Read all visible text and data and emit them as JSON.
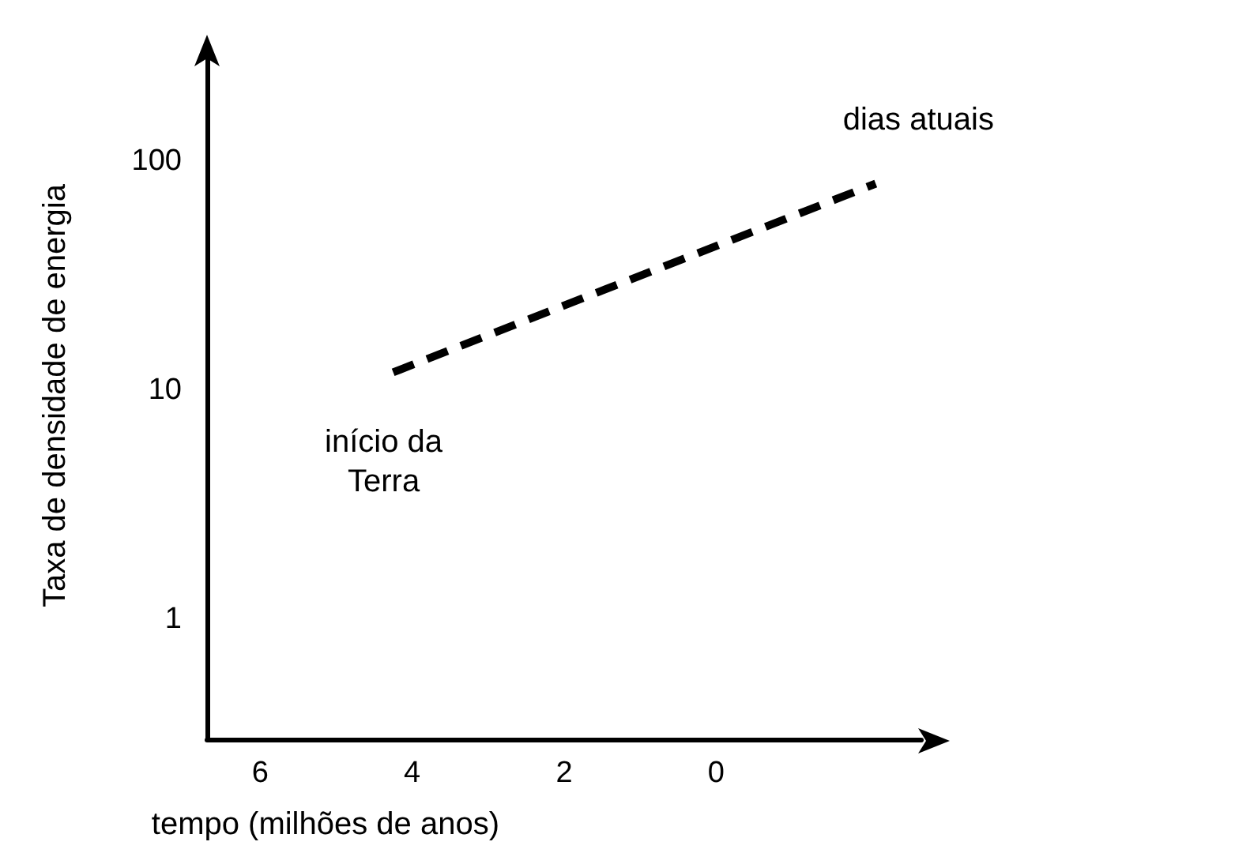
{
  "chart_data": {
    "type": "line",
    "xlabel": "tempo (milhões de anos)",
    "ylabel": "Taxa de densidade de energia",
    "x": [
      4.25,
      -2.1
    ],
    "series": [
      {
        "color": "#000000",
        "values": [
          12,
          80
        ]
      }
    ],
    "xlim": [
      6.7,
      -2.7
    ],
    "xticks": [
      6,
      4,
      2,
      0
    ],
    "ylim": [
      0.3,
      300
    ],
    "yticks": [
      1,
      10,
      100
    ],
    "log": true,
    "grid": false,
    "marker": "none",
    "line_style": "dashed",
    "annotations": [
      "início da\nTerra",
      "dias atuais"
    ]
  }
}
